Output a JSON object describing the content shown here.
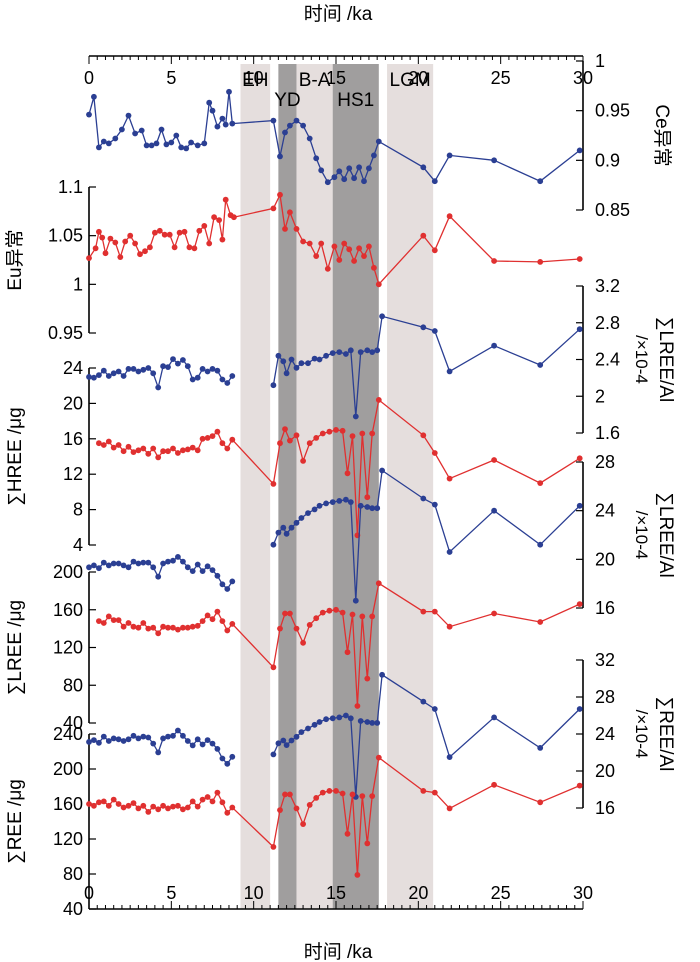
{
  "chart_data": {
    "type": "line",
    "xlabel": "时间 /ka",
    "xlim": [
      0,
      30
    ],
    "x_ticks": [
      "0",
      "5",
      "10",
      "15",
      "20",
      "25",
      "30"
    ],
    "colors": {
      "blue": "#2b3f93",
      "red": "#e03030",
      "band_light": "#e5dedd",
      "band_dark": "#a09e9e"
    },
    "bands": [
      {
        "label": "EH",
        "from": 9.2,
        "to": 11.0,
        "shade": "light"
      },
      {
        "label": "YD",
        "from": 11.5,
        "to": 12.6,
        "shade": "dark"
      },
      {
        "label": "B-A",
        "from": 12.6,
        "to": 14.8,
        "shade": "light"
      },
      {
        "label": "HS1",
        "from": 14.8,
        "to": 17.6,
        "shade": "dark"
      },
      {
        "label": "LGM",
        "from": 18.1,
        "to": 20.9,
        "shade": "light"
      }
    ],
    "axes": [
      {
        "id": "ce",
        "label": "Ce异常",
        "side": "right",
        "range": [
          0.85,
          1.0
        ],
        "ticks": [
          "0.85",
          "0.9",
          "0.95",
          "1"
        ]
      },
      {
        "id": "eu",
        "label": "Eu异常",
        "side": "left",
        "range": [
          0.95,
          1.1
        ],
        "ticks": [
          "0.95",
          "1",
          "1.05",
          "1.1"
        ]
      },
      {
        "id": "hreeal",
        "label": "∑LREE/Al",
        "unit": "/×10-4",
        "side": "right",
        "range": [
          1.6,
          3.2
        ],
        "ticks": [
          "1.6",
          "2",
          "2.4",
          "2.8",
          "3.2"
        ]
      },
      {
        "id": "hree",
        "label": "∑HREE /μg",
        "side": "left",
        "range": [
          4,
          24
        ],
        "ticks": [
          "4",
          "8",
          "12",
          "16",
          "20",
          "24"
        ]
      },
      {
        "id": "lreeal",
        "label": "∑LREE/Al",
        "unit": "/×10-4",
        "side": "right",
        "range": [
          16,
          28
        ],
        "ticks": [
          "16",
          "20",
          "24",
          "28"
        ]
      },
      {
        "id": "lree",
        "label": "∑LREE /μg",
        "side": "left",
        "range": [
          40,
          200
        ],
        "ticks": [
          "40",
          "80",
          "120",
          "160",
          "200"
        ]
      },
      {
        "id": "reeal",
        "label": "∑REE/Al",
        "unit": "/×10-4",
        "side": "right",
        "range": [
          16,
          32
        ],
        "ticks": [
          "16",
          "20",
          "24",
          "28",
          "32"
        ]
      },
      {
        "id": "ree",
        "label": "∑REE /μg",
        "side": "left",
        "range": [
          40,
          240
        ],
        "ticks": [
          "40",
          "80",
          "120",
          "160",
          "200",
          "240"
        ]
      }
    ],
    "series": [
      {
        "axis": "ce",
        "color": "blue",
        "x": [
          0.0,
          0.3,
          0.6,
          0.9,
          1.2,
          1.6,
          2.0,
          2.4,
          2.8,
          3.2,
          3.5,
          3.8,
          4.1,
          4.4,
          4.7,
          5.0,
          5.3,
          5.6,
          5.9,
          6.2,
          6.6,
          7.0,
          7.3,
          7.5,
          7.8,
          8.1,
          8.3,
          8.5,
          8.7,
          11.2,
          11.6,
          11.9,
          12.2,
          12.6,
          13.0,
          13.4,
          13.8,
          14.1,
          14.5,
          14.9,
          15.2,
          15.5,
          15.8,
          16.1,
          16.4,
          16.7,
          17.0,
          17.3,
          17.6,
          20.3,
          21.0,
          21.9,
          24.6,
          27.4,
          29.8
        ],
        "y": [
          0.946,
          0.964,
          0.913,
          0.919,
          0.917,
          0.922,
          0.931,
          0.945,
          0.927,
          0.93,
          0.915,
          0.915,
          0.917,
          0.931,
          0.916,
          0.918,
          0.925,
          0.913,
          0.912,
          0.918,
          0.915,
          0.917,
          0.958,
          0.95,
          0.934,
          0.942,
          0.936,
          0.969,
          0.937,
          0.94,
          0.904,
          0.928,
          0.935,
          0.94,
          0.935,
          0.922,
          0.902,
          0.89,
          0.878,
          0.883,
          0.889,
          0.881,
          0.892,
          0.882,
          0.893,
          0.879,
          0.892,
          0.905,
          0.919,
          0.893,
          0.879,
          0.905,
          0.9,
          0.879,
          0.91
        ]
      },
      {
        "axis": "eu",
        "color": "red",
        "x": [
          0.0,
          0.4,
          0.6,
          0.8,
          1.0,
          1.3,
          1.6,
          1.9,
          2.2,
          2.5,
          2.8,
          3.1,
          3.4,
          3.7,
          4.0,
          4.3,
          4.6,
          4.9,
          5.2,
          5.5,
          5.8,
          6.1,
          6.4,
          6.7,
          7.0,
          7.3,
          7.6,
          7.9,
          8.1,
          8.3,
          8.6,
          8.8,
          11.2,
          11.6,
          11.9,
          12.2,
          12.6,
          13.0,
          13.4,
          13.8,
          14.1,
          14.5,
          14.9,
          15.2,
          15.5,
          15.8,
          16.1,
          16.4,
          16.7,
          17.0,
          17.3,
          17.6,
          20.3,
          21.0,
          21.9,
          24.6,
          27.4,
          29.8
        ],
        "y": [
          1.027,
          1.037,
          1.054,
          1.048,
          1.032,
          1.047,
          1.043,
          1.028,
          1.044,
          1.05,
          1.042,
          1.031,
          1.034,
          1.038,
          1.053,
          1.055,
          1.051,
          1.051,
          1.038,
          1.053,
          1.054,
          1.038,
          1.037,
          1.055,
          1.06,
          1.042,
          1.069,
          1.066,
          1.046,
          1.087,
          1.071,
          1.069,
          1.078,
          1.092,
          1.057,
          1.074,
          1.057,
          1.044,
          1.042,
          1.029,
          1.042,
          1.016,
          1.039,
          1.025,
          1.042,
          1.036,
          1.024,
          1.037,
          1.029,
          1.039,
          1.017,
          1.0,
          1.05,
          1.035,
          1.07,
          1.024,
          1.023,
          1.026
        ]
      },
      {
        "axis": "hreeal",
        "color": "blue",
        "x": [
          11.2,
          11.5,
          11.8,
          12.0,
          12.3,
          12.6,
          12.9,
          13.3,
          13.7,
          14.0,
          14.4,
          14.8,
          15.2,
          15.6,
          15.9,
          16.2,
          16.5,
          16.9,
          17.2,
          17.5,
          17.8,
          20.3,
          21.0,
          21.9,
          24.6,
          27.4,
          29.8
        ],
        "y": [
          2.12,
          2.44,
          2.38,
          2.25,
          2.4,
          2.31,
          2.36,
          2.36,
          2.41,
          2.4,
          2.44,
          2.47,
          2.48,
          2.46,
          2.5,
          1.78,
          2.48,
          2.5,
          2.48,
          2.5,
          2.87,
          2.75,
          2.71,
          2.27,
          2.55,
          2.34,
          2.73
        ]
      },
      {
        "axis": "hree",
        "color": "blue",
        "x": [
          0.0,
          0.3,
          0.6,
          0.9,
          1.2,
          1.5,
          1.8,
          2.1,
          2.4,
          2.7,
          3.0,
          3.3,
          3.6,
          3.9,
          4.2,
          4.5,
          4.8,
          5.1,
          5.4,
          5.7,
          6.0,
          6.3,
          6.6,
          6.9,
          7.2,
          7.5,
          7.8,
          8.1,
          8.4,
          8.7
        ],
        "y": [
          23.0,
          22.9,
          23.2,
          23.7,
          23.1,
          23.4,
          23.6,
          23.1,
          23.9,
          23.9,
          23.6,
          23.8,
          24.0,
          23.4,
          21.8,
          24.2,
          24.1,
          25.0,
          24.5,
          24.9,
          24.2,
          22.7,
          22.9,
          23.9,
          23.6,
          23.9,
          23.7,
          22.7,
          22.3,
          23.1
        ]
      },
      {
        "axis": "hree",
        "color": "red",
        "x": [
          0.6,
          0.9,
          1.2,
          1.5,
          1.8,
          2.1,
          2.4,
          2.7,
          3.0,
          3.3,
          3.6,
          3.9,
          4.2,
          4.5,
          4.8,
          5.1,
          5.4,
          5.7,
          6.0,
          6.3,
          6.6,
          6.9,
          7.2,
          7.5,
          7.8,
          8.1,
          8.4,
          8.7,
          11.2,
          11.6,
          11.9,
          12.2,
          12.6,
          13.0,
          13.4,
          13.8,
          14.2,
          14.6,
          15.0,
          15.4,
          15.7,
          16.0,
          16.3,
          16.6,
          16.9,
          17.2,
          17.6,
          20.3,
          21.0,
          21.9,
          24.6,
          27.4,
          29.8
        ],
        "y": [
          15.5,
          15.3,
          15.7,
          15.0,
          15.3,
          14.6,
          15.1,
          14.5,
          14.7,
          14.9,
          14.3,
          14.9,
          13.9,
          14.6,
          14.6,
          14.9,
          14.4,
          14.7,
          14.8,
          15.0,
          14.7,
          16.0,
          16.1,
          16.3,
          16.8,
          15.5,
          14.9,
          15.9,
          10.9,
          15.5,
          17.1,
          15.8,
          16.4,
          13.5,
          15.5,
          16.1,
          16.6,
          16.8,
          17.0,
          16.9,
          12.1,
          16.3,
          5.1,
          16.6,
          9.4,
          16.6,
          20.4,
          16.4,
          14.4,
          11.5,
          13.6,
          11.0,
          13.8
        ]
      },
      {
        "axis": "lreeal",
        "color": "blue",
        "x": [
          11.2,
          11.5,
          11.8,
          12.0,
          12.3,
          12.6,
          12.9,
          13.3,
          13.7,
          14.0,
          14.4,
          14.8,
          15.2,
          15.6,
          15.9,
          16.2,
          16.5,
          16.9,
          17.2,
          17.5,
          17.8,
          20.3,
          21.0,
          21.9,
          24.6,
          27.4,
          29.8
        ],
        "y": [
          21.2,
          22.2,
          22.6,
          22.1,
          22.6,
          23.0,
          23.4,
          23.8,
          24.1,
          24.4,
          24.6,
          24.7,
          24.8,
          24.9,
          24.7,
          16.6,
          24.4,
          24.3,
          24.2,
          24.2,
          27.3,
          25.0,
          24.5,
          20.6,
          24.0,
          21.2,
          24.4
        ]
      },
      {
        "axis": "lree",
        "color": "blue",
        "x": [
          0.0,
          0.3,
          0.6,
          0.9,
          1.2,
          1.5,
          1.8,
          2.1,
          2.4,
          2.7,
          3.0,
          3.3,
          3.6,
          3.9,
          4.2,
          4.5,
          4.8,
          5.1,
          5.4,
          5.7,
          6.0,
          6.3,
          6.6,
          6.9,
          7.2,
          7.5,
          7.8,
          8.1,
          8.4,
          8.7
        ],
        "y": [
          205,
          207,
          204,
          210,
          207,
          209,
          209,
          207,
          205,
          211,
          209,
          210,
          210,
          205,
          195,
          209,
          211,
          212,
          216,
          211,
          205,
          201,
          208,
          201,
          206,
          202,
          196,
          187,
          182,
          190
        ]
      },
      {
        "axis": "lree",
        "color": "red",
        "x": [
          0.6,
          0.9,
          1.2,
          1.5,
          1.8,
          2.1,
          2.4,
          2.7,
          3.0,
          3.3,
          3.6,
          3.9,
          4.2,
          4.5,
          4.8,
          5.1,
          5.4,
          5.7,
          6.0,
          6.3,
          6.6,
          6.9,
          7.2,
          7.5,
          7.8,
          8.1,
          8.4,
          8.7,
          11.2,
          11.6,
          11.9,
          12.2,
          12.6,
          13.0,
          13.4,
          13.8,
          14.2,
          14.6,
          15.0,
          15.4,
          15.7,
          16.0,
          16.3,
          16.6,
          16.9,
          17.2,
          17.6,
          20.3,
          21.0,
          21.9,
          24.6,
          27.4,
          29.8
        ],
        "y": [
          148,
          146,
          153,
          149,
          149,
          142,
          146,
          142,
          141,
          146,
          140,
          141,
          135,
          142,
          141,
          141,
          139,
          141,
          141,
          142,
          143,
          148,
          154,
          150,
          158,
          148,
          138,
          145,
          99,
          140,
          156,
          156,
          140,
          125,
          144,
          151,
          157,
          159,
          160,
          157,
          115,
          155,
          58,
          153,
          87,
          153,
          188,
          158,
          158,
          142,
          156,
          147,
          166
        ]
      },
      {
        "axis": "reeal",
        "color": "blue",
        "x": [
          11.2,
          11.5,
          11.8,
          12.0,
          12.3,
          12.6,
          12.9,
          13.3,
          13.7,
          14.0,
          14.4,
          14.8,
          15.2,
          15.6,
          15.9,
          16.2,
          16.5,
          16.9,
          17.2,
          17.5,
          17.8,
          20.3,
          21.0,
          21.9,
          24.6,
          27.4,
          29.8
        ],
        "y": [
          21.8,
          23.0,
          23.3,
          22.8,
          23.3,
          23.7,
          24.2,
          24.6,
          25.0,
          25.3,
          25.6,
          25.7,
          25.8,
          26.0,
          25.7,
          17.2,
          25.4,
          25.3,
          25.2,
          25.2,
          30.4,
          27.5,
          26.7,
          21.5,
          25.8,
          22.5,
          26.7
        ]
      },
      {
        "axis": "ree",
        "color": "blue",
        "x": [
          0.0,
          0.3,
          0.6,
          0.9,
          1.2,
          1.5,
          1.8,
          2.1,
          2.4,
          2.7,
          3.0,
          3.3,
          3.6,
          3.9,
          4.2,
          4.5,
          4.8,
          5.1,
          5.4,
          5.7,
          6.0,
          6.3,
          6.6,
          6.9,
          7.2,
          7.5,
          7.8,
          8.1,
          8.4,
          8.7
        ],
        "y": [
          231,
          233,
          230,
          237,
          232,
          235,
          234,
          232,
          234,
          238,
          235,
          237,
          236,
          229,
          219,
          235,
          237,
          238,
          244,
          238,
          232,
          227,
          234,
          228,
          233,
          229,
          223,
          212,
          206,
          214
        ]
      },
      {
        "axis": "ree",
        "color": "red",
        "x": [
          0.0,
          0.3,
          0.6,
          0.9,
          1.2,
          1.5,
          1.8,
          2.1,
          2.4,
          2.7,
          3.0,
          3.3,
          3.6,
          3.9,
          4.2,
          4.5,
          4.8,
          5.1,
          5.4,
          5.7,
          6.0,
          6.3,
          6.6,
          6.9,
          7.2,
          7.5,
          7.8,
          8.1,
          8.4,
          8.7,
          11.2,
          11.6,
          11.9,
          12.2,
          12.6,
          13.0,
          13.4,
          13.8,
          14.2,
          14.6,
          15.0,
          15.4,
          15.7,
          16.0,
          16.3,
          16.6,
          16.9,
          17.2,
          17.6,
          20.3,
          21.0,
          21.9,
          24.6,
          27.4,
          29.8
        ],
        "y": [
          160,
          158,
          162,
          163,
          158,
          165,
          160,
          156,
          158,
          161,
          155,
          158,
          151,
          157,
          154,
          158,
          155,
          157,
          158,
          154,
          156,
          163,
          157,
          165,
          168,
          163,
          173,
          162,
          150,
          156,
          111,
          153,
          171,
          171,
          155,
          137,
          159,
          167,
          173,
          175,
          175,
          172,
          126,
          171,
          79,
          169,
          115,
          169,
          213,
          175,
          173,
          155,
          182,
          162,
          181
        ]
      }
    ]
  }
}
